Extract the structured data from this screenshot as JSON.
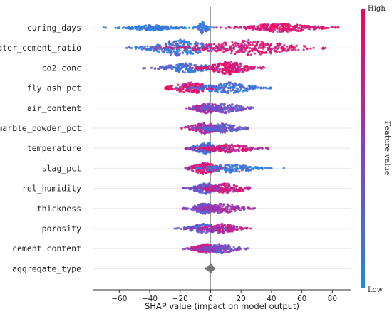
{
  "chart_data": {
    "type": "scatter",
    "subtype": "shap-beeswarm",
    "xlabel": "SHAP value (impact on model output)",
    "xlim": [
      -77,
      92
    ],
    "xticks": [
      -60,
      -40,
      -20,
      0,
      20,
      40,
      60,
      80
    ],
    "colorbar": {
      "title": "Feature value",
      "high_label": "High",
      "low_label": "Low",
      "low_color": "#1e88e5",
      "high_color": "#ff0052"
    },
    "features": [
      {
        "name": "curing_days",
        "clusters": [
          {
            "center": -38,
            "spread": 12,
            "thickness": 4,
            "count": 170,
            "value": 0.05
          },
          {
            "center": -5,
            "spread": 2.5,
            "thickness": 9,
            "count": 60,
            "value": 0.15
          },
          {
            "center": 47,
            "spread": 15,
            "thickness": 7,
            "count": 260,
            "value": 0.9
          }
        ],
        "range": [
          -72,
          84
        ]
      },
      {
        "name": "water_cement_ratio",
        "clusters": [
          {
            "center": -20,
            "spread": 14,
            "thickness": 12,
            "count": 260,
            "value": 0.15
          },
          {
            "center": 25,
            "spread": 22,
            "thickness": 11,
            "count": 280,
            "value": 0.85
          }
        ],
        "range": [
          -65,
          85
        ]
      },
      {
        "name": "co2_conc",
        "clusters": [
          {
            "center": -15,
            "spread": 12,
            "thickness": 7,
            "count": 180,
            "value": 0.2
          },
          {
            "center": 12,
            "spread": 9,
            "thickness": 10,
            "count": 220,
            "value": 0.85
          }
        ],
        "range": [
          -45,
          40
        ]
      },
      {
        "name": "fly_ash_pct",
        "clusters": [
          {
            "center": -12,
            "spread": 10,
            "thickness": 8,
            "count": 180,
            "value": 0.85
          },
          {
            "center": 12,
            "spread": 12,
            "thickness": 8,
            "count": 180,
            "value": 0.15
          }
        ],
        "range": [
          -30,
          40
        ]
      },
      {
        "name": "air_content",
        "clusters": [
          {
            "center": -2,
            "spread": 6,
            "thickness": 8,
            "count": 180,
            "value": 0.6
          },
          {
            "center": 10,
            "spread": 9,
            "thickness": 7,
            "count": 150,
            "value": 0.35
          }
        ],
        "range": [
          -20,
          28
        ]
      },
      {
        "name": "marble_powder_pct",
        "clusters": [
          {
            "center": -4,
            "spread": 7,
            "thickness": 8,
            "count": 180,
            "value": 0.7
          },
          {
            "center": 8,
            "spread": 8,
            "thickness": 7,
            "count": 150,
            "value": 0.3
          }
        ],
        "range": [
          -20,
          25
        ]
      },
      {
        "name": "temperature",
        "clusters": [
          {
            "center": -3,
            "spread": 6,
            "thickness": 8,
            "count": 170,
            "value": 0.2
          },
          {
            "center": 12,
            "spread": 12,
            "thickness": 6,
            "count": 160,
            "value": 0.8
          }
        ],
        "range": [
          -17,
          38
        ]
      },
      {
        "name": "slag_pct",
        "clusters": [
          {
            "center": -4,
            "spread": 6,
            "thickness": 9,
            "count": 190,
            "value": 0.85
          },
          {
            "center": 14,
            "spread": 13,
            "thickness": 6,
            "count": 150,
            "value": 0.1
          }
        ],
        "range": [
          -17,
          50
        ]
      },
      {
        "name": "rel_humidity",
        "clusters": [
          {
            "center": -3,
            "spread": 6,
            "thickness": 8,
            "count": 170,
            "value": 0.3
          },
          {
            "center": 10,
            "spread": 9,
            "thickness": 7,
            "count": 150,
            "value": 0.75
          }
        ],
        "range": [
          -18,
          26
        ]
      },
      {
        "name": "thickness",
        "clusters": [
          {
            "center": -4,
            "spread": 6,
            "thickness": 8,
            "count": 170,
            "value": 0.35
          },
          {
            "center": 8,
            "spread": 9,
            "thickness": 7,
            "count": 150,
            "value": 0.6
          }
        ],
        "range": [
          -19,
          30
        ]
      },
      {
        "name": "porosity",
        "clusters": [
          {
            "center": -5,
            "spread": 7,
            "thickness": 7,
            "count": 160,
            "value": 0.3
          },
          {
            "center": 7,
            "spread": 8,
            "thickness": 7,
            "count": 150,
            "value": 0.7
          }
        ],
        "range": [
          -25,
          28
        ]
      },
      {
        "name": "cement_content",
        "clusters": [
          {
            "center": -3,
            "spread": 6,
            "thickness": 7,
            "count": 160,
            "value": 0.75
          },
          {
            "center": 7,
            "spread": 8,
            "thickness": 7,
            "count": 150,
            "value": 0.4
          }
        ],
        "range": [
          -18,
          25
        ]
      },
      {
        "name": "aggregate_type",
        "clusters": [
          {
            "center": 0,
            "spread": 1.2,
            "thickness": 6,
            "count": 70,
            "value": -1
          }
        ],
        "range": [
          -3,
          3
        ]
      }
    ]
  }
}
